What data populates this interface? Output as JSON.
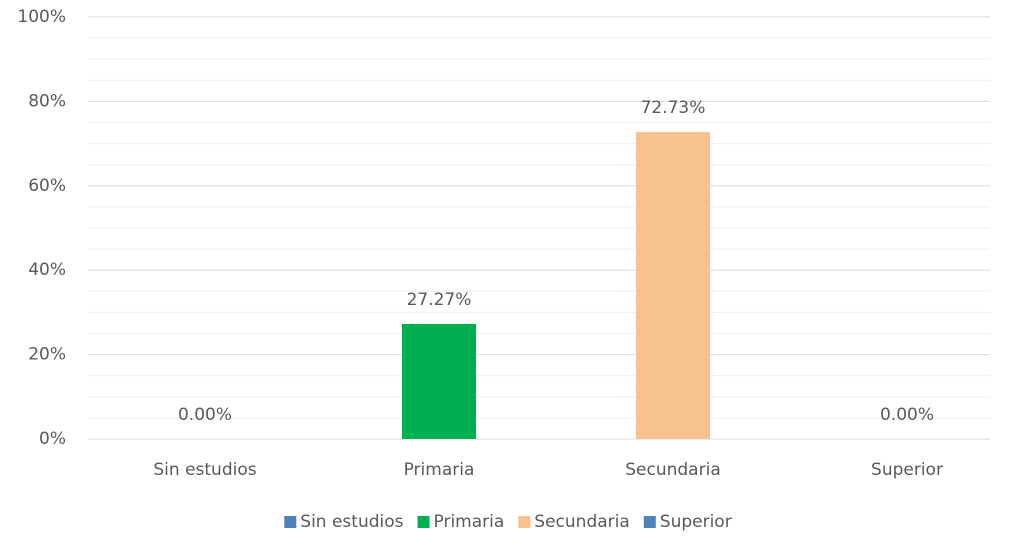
{
  "chart_data": {
    "type": "bar",
    "categories": [
      "Sin estudios",
      "Primaria",
      "Secundaria",
      "Superior"
    ],
    "values": [
      0,
      27.27,
      72.73,
      0
    ],
    "value_labels": [
      "0.00%",
      "27.27%",
      "72.73%",
      "0.00%"
    ],
    "colors": [
      "#4f81bd",
      "#00b050",
      "#f8c290",
      "#4f81bd"
    ],
    "ylim": [
      0,
      100
    ],
    "yticks": [
      {
        "value": 0,
        "label": "0%"
      },
      {
        "value": 20,
        "label": "20%"
      },
      {
        "value": 40,
        "label": "40%"
      },
      {
        "value": 60,
        "label": "60%"
      },
      {
        "value": 80,
        "label": "80%"
      },
      {
        "value": 100,
        "label": "100%"
      }
    ],
    "grid": true,
    "legend": "bottom"
  }
}
